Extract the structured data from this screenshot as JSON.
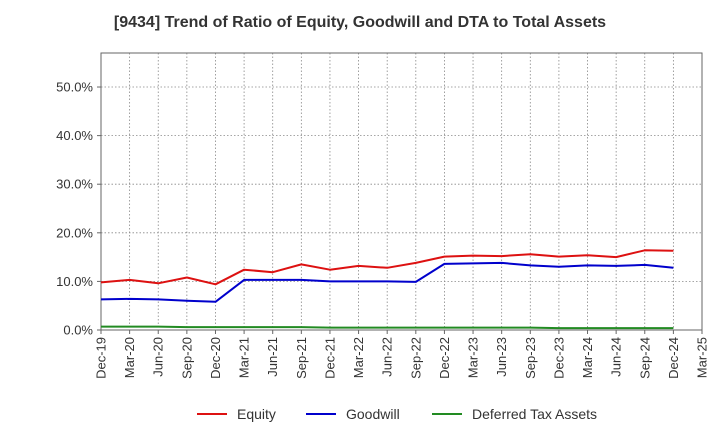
{
  "chart_data": {
    "type": "line",
    "title": "[9434]  Trend of Ratio of Equity, Goodwill and DTA to Total Assets",
    "xlabel": "",
    "ylabel": "",
    "ylim": [
      0,
      57
    ],
    "y_ticks": [
      0,
      10,
      20,
      30,
      40,
      50
    ],
    "y_tick_labels": [
      "0.0%",
      "10.0%",
      "20.0%",
      "30.0%",
      "40.0%",
      "50.0%"
    ],
    "categories": [
      "Dec-19",
      "Mar-20",
      "Jun-20",
      "Sep-20",
      "Dec-20",
      "Mar-21",
      "Jun-21",
      "Sep-21",
      "Dec-21",
      "Mar-22",
      "Jun-22",
      "Sep-22",
      "Dec-22",
      "Mar-23",
      "Jun-23",
      "Sep-23",
      "Dec-23",
      "Mar-24",
      "Jun-24",
      "Sep-24",
      "Dec-24",
      "Mar-25"
    ],
    "grid": true,
    "legend_position": "bottom",
    "series": [
      {
        "name": "Equity",
        "color": "#dd1111",
        "values": [
          9.8,
          10.3,
          9.6,
          10.8,
          9.4,
          12.4,
          11.9,
          13.5,
          12.4,
          13.2,
          12.8,
          13.8,
          15.1,
          15.3,
          15.2,
          15.6,
          15.1,
          15.4,
          15.0,
          16.4,
          16.3,
          null
        ]
      },
      {
        "name": "Goodwill",
        "color": "#0000cc",
        "values": [
          6.3,
          6.4,
          6.3,
          6.0,
          5.8,
          10.3,
          10.3,
          10.3,
          10.0,
          10.0,
          10.0,
          9.9,
          13.6,
          13.7,
          13.8,
          13.3,
          13.0,
          13.3,
          13.2,
          13.4,
          12.8,
          null
        ]
      },
      {
        "name": "Deferred Tax Assets",
        "color": "#228b22",
        "values": [
          0.7,
          0.7,
          0.7,
          0.6,
          0.6,
          0.6,
          0.6,
          0.6,
          0.5,
          0.5,
          0.5,
          0.5,
          0.5,
          0.5,
          0.5,
          0.5,
          0.4,
          0.4,
          0.4,
          0.4,
          0.4,
          null
        ]
      }
    ]
  }
}
